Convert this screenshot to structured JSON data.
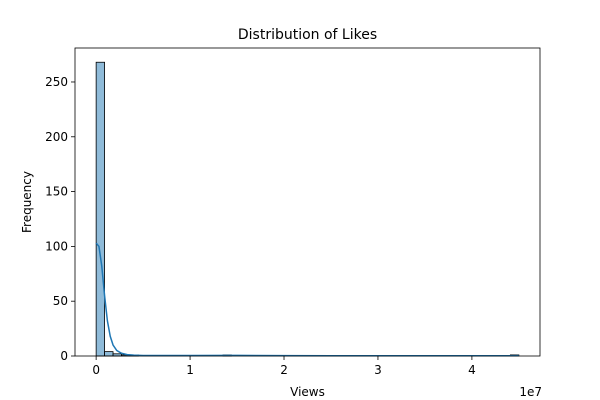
{
  "chart_data": {
    "type": "bar",
    "title": "Distribution of Likes",
    "xlabel": "Views",
    "ylabel": "Frequency",
    "x_offset_label": "1e7",
    "xlim": [
      -2250000,
      47250000
    ],
    "ylim": [
      0,
      281
    ],
    "xticks": [
      0,
      10000000,
      20000000,
      30000000,
      40000000
    ],
    "xtick_labels": [
      "0",
      "1",
      "2",
      "3",
      "4"
    ],
    "yticks": [
      0,
      50,
      100,
      150,
      200,
      250
    ],
    "ytick_labels": [
      "0",
      "50",
      "100",
      "150",
      "200",
      "250"
    ],
    "bins": {
      "start": 0,
      "width": 900000,
      "counts": [
        268,
        4,
        2,
        1,
        1,
        0,
        0,
        0,
        0,
        0,
        0,
        0,
        0,
        0,
        0,
        1,
        0,
        0,
        0,
        0,
        0,
        0,
        0,
        0,
        0,
        0,
        0,
        0,
        0,
        0,
        0,
        0,
        0,
        0,
        0,
        0,
        0,
        0,
        0,
        0,
        0,
        0,
        0,
        0,
        0,
        0,
        0,
        0,
        0,
        1
      ]
    },
    "kde": {
      "x": [
        0,
        300000,
        600000,
        900000,
        1200000,
        1500000,
        1800000,
        2200000,
        2700000,
        3300000,
        4000000,
        5000000,
        7000000,
        10000000,
        15000000,
        20000000,
        25000000,
        30000000,
        35000000,
        40000000,
        45000000
      ],
      "y": [
        103,
        100,
        82,
        55,
        32,
        18,
        10,
        5,
        2.5,
        1.3,
        0.8,
        0.5,
        0.4,
        0.4,
        0.6,
        0.3,
        0.2,
        0.2,
        0.2,
        0.2,
        0.3
      ]
    },
    "grid": false
  }
}
